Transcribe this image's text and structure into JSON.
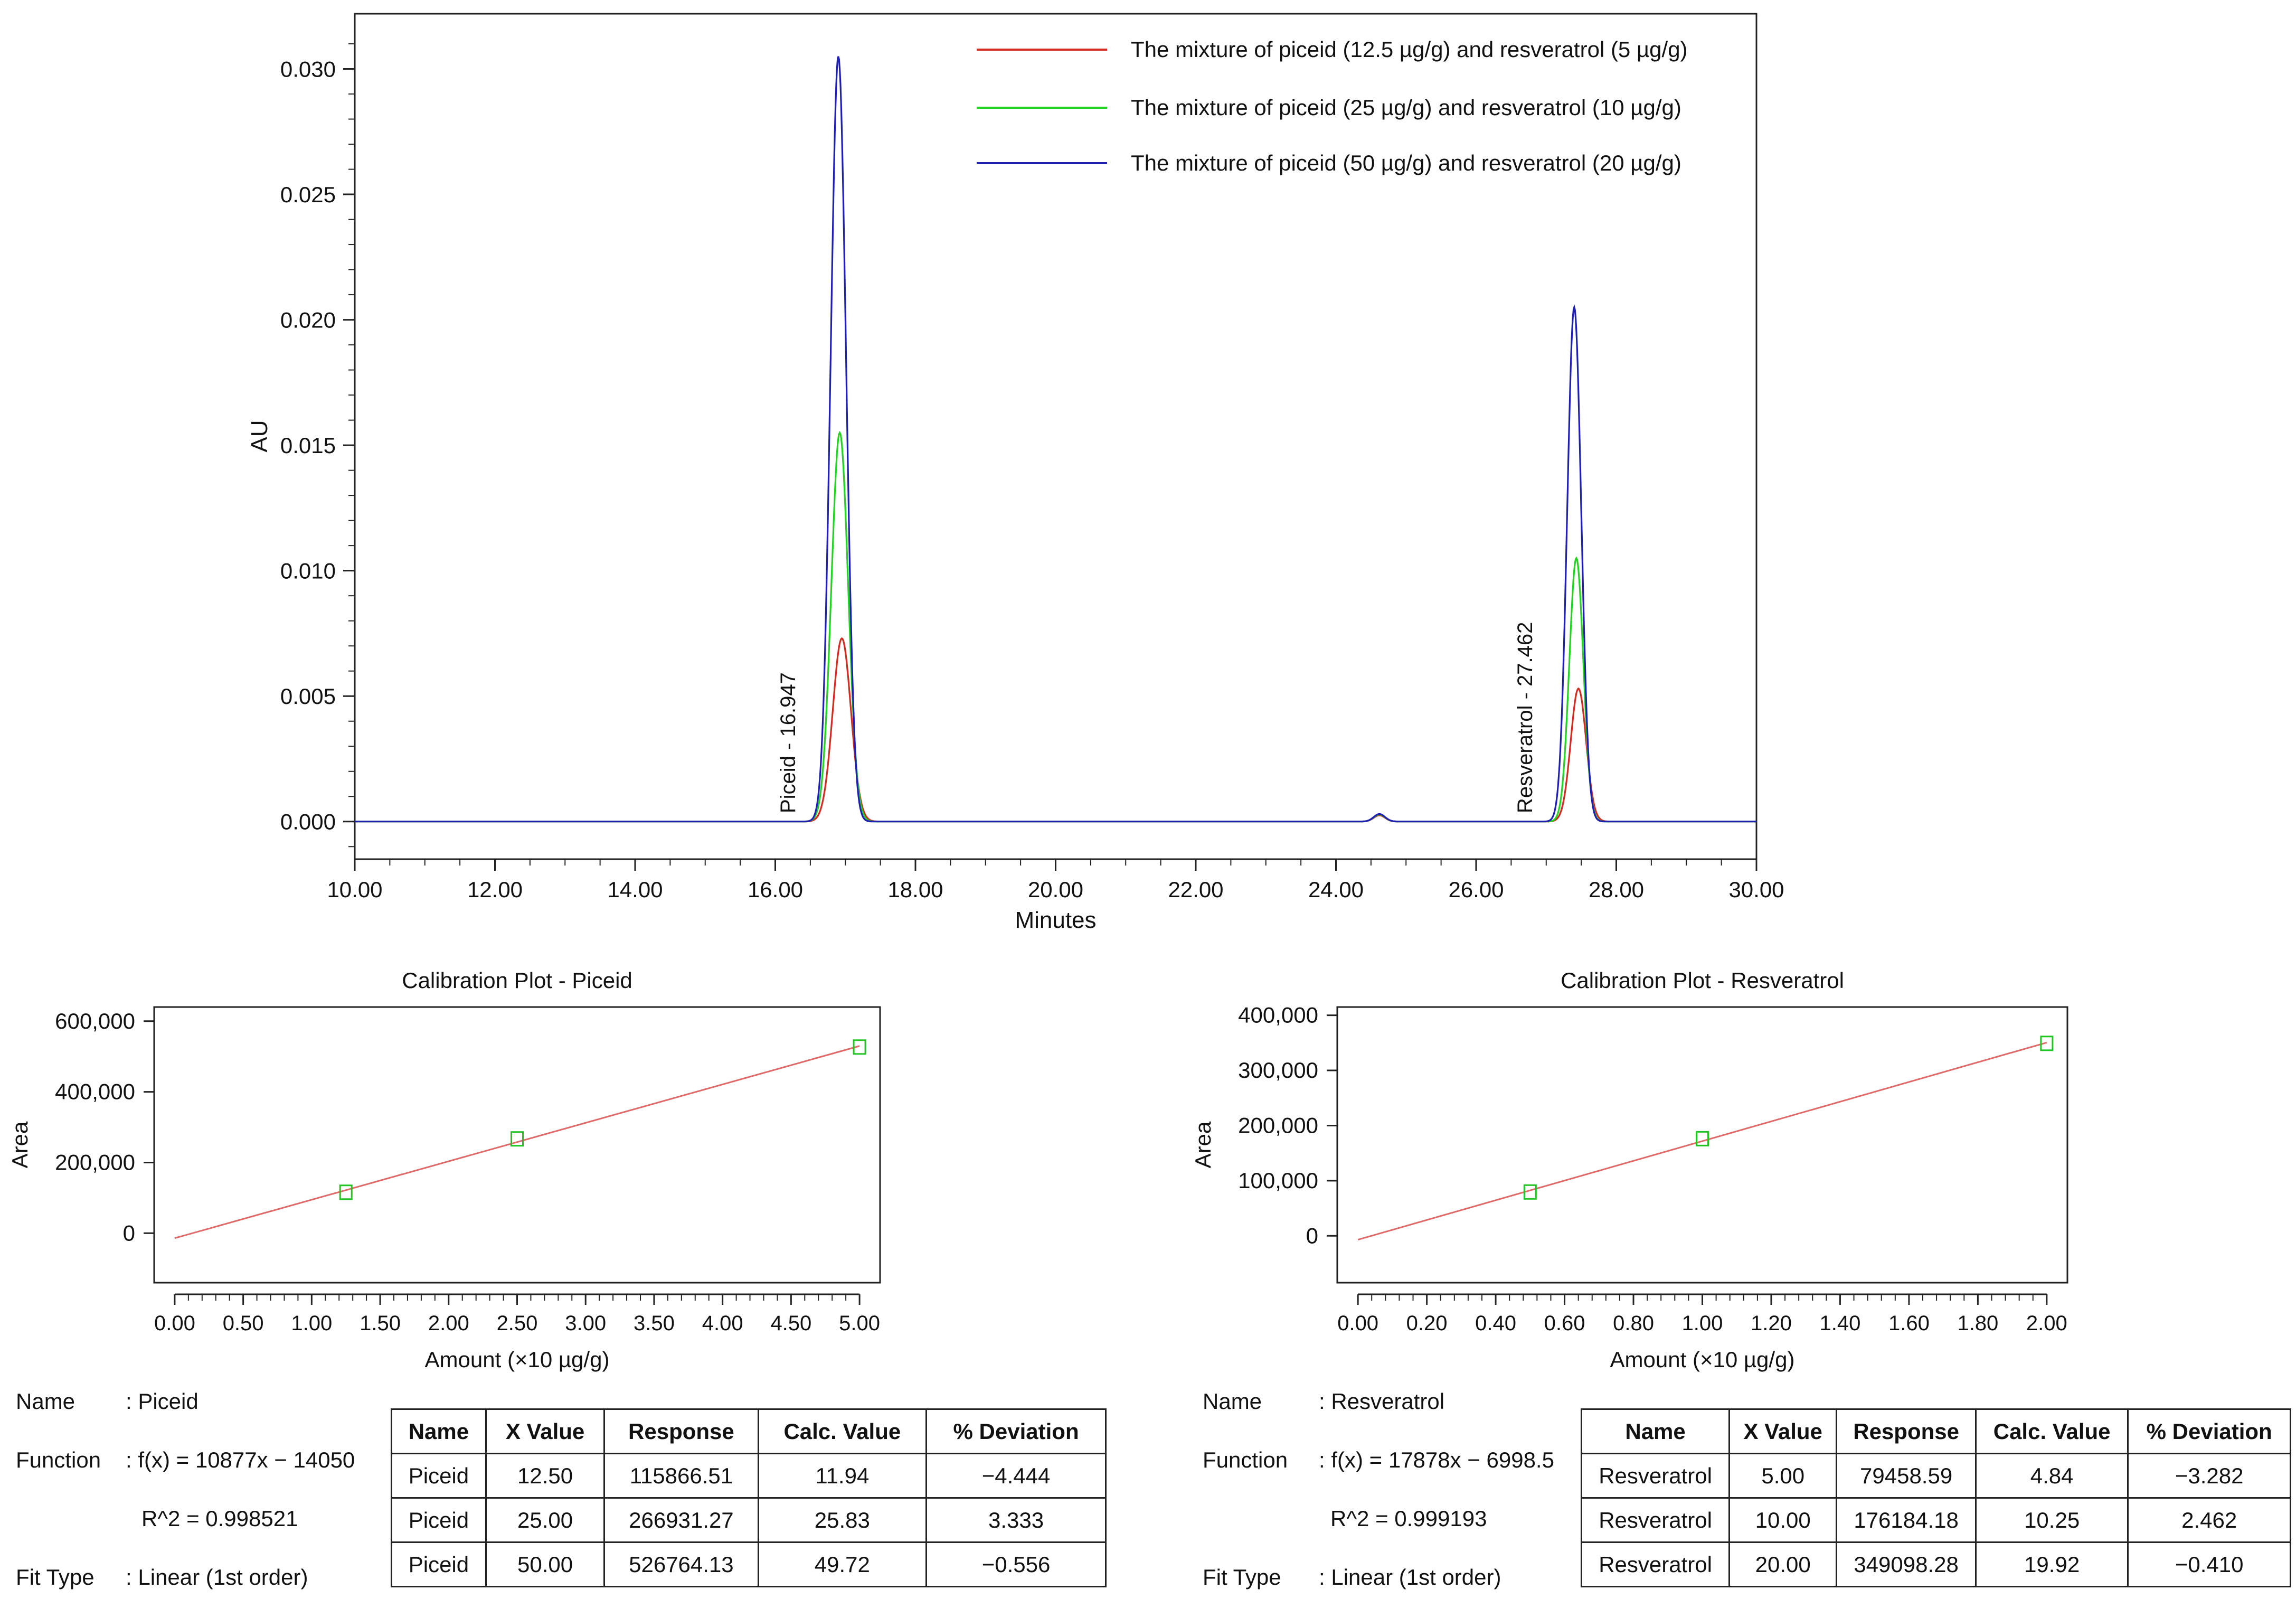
{
  "colors": {
    "red": "#d42b20",
    "green": "#22d322",
    "blue": "#1f1fb4",
    "fit_line": "#e06868",
    "marker": "#22c422",
    "axis": "#222222"
  },
  "chart_data": [
    {
      "type": "line",
      "title": "",
      "xlabel": "Minutes",
      "ylabel": "AU",
      "xlim": [
        10.0,
        30.0
      ],
      "ylim": [
        -0.0015,
        0.0322
      ],
      "x_ticks": [
        "10.00",
        "12.00",
        "14.00",
        "16.00",
        "18.00",
        "20.00",
        "22.00",
        "24.00",
        "26.00",
        "28.00",
        "30.00"
      ],
      "y_ticks": [
        "0.000",
        "0.005",
        "0.010",
        "0.015",
        "0.020",
        "0.025",
        "0.030"
      ],
      "grid": false,
      "legend": "top-right",
      "series": [
        {
          "name": "The mixture of piceid (12.5 µg/g) and resveratrol (5 µg/g)",
          "color": "#d42b20",
          "peaks": [
            {
              "rt": 16.95,
              "height": 0.0073,
              "width": 0.13
            },
            {
              "rt": 27.46,
              "height": 0.0053,
              "width": 0.11
            },
            {
              "rt": 24.62,
              "height": 0.00025,
              "width": 0.08
            }
          ]
        },
        {
          "name": "The mixture of piceid (25 µg/g) and resveratrol (10 µg/g)",
          "color": "#22d322",
          "peaks": [
            {
              "rt": 16.92,
              "height": 0.0155,
              "width": 0.12
            },
            {
              "rt": 27.43,
              "height": 0.0105,
              "width": 0.1
            },
            {
              "rt": 24.62,
              "height": 0.00028,
              "width": 0.08
            }
          ]
        },
        {
          "name": "The mixture of piceid (50 µg/g) and resveratrol (20 µg/g)",
          "color": "#1f1fb4",
          "peaks": [
            {
              "rt": 16.9,
              "height": 0.0305,
              "width": 0.11
            },
            {
              "rt": 27.4,
              "height": 0.0205,
              "width": 0.1
            },
            {
              "rt": 24.62,
              "height": 0.0003,
              "width": 0.08
            }
          ]
        }
      ],
      "annotations": [
        {
          "text": "Piceid - 16.947",
          "x": 16.947
        },
        {
          "text": "Resveratrol - 27.462",
          "x": 27.462
        }
      ]
    },
    {
      "type": "scatter",
      "title": "Calibration Plot - Piceid",
      "xlabel": "Amount (×10 µg/g)",
      "ylabel": "Area",
      "xlim": [
        -0.15,
        5.15
      ],
      "ylim": [
        -140000,
        640000
      ],
      "x_ticks": [
        "0.00",
        "0.50",
        "1.00",
        "1.50",
        "2.00",
        "2.50",
        "3.00",
        "3.50",
        "4.00",
        "4.50",
        "5.00"
      ],
      "y_ticks": [
        "0",
        "200,000",
        "400,000",
        "600,000"
      ],
      "points": [
        {
          "x": 1.25,
          "y": 115866.51
        },
        {
          "x": 2.5,
          "y": 266931.27
        },
        {
          "x": 5.0,
          "y": 526764.13
        }
      ],
      "fit": {
        "slope": 108770,
        "intercept": -14050,
        "x_range": [
          0.0,
          5.0
        ]
      }
    },
    {
      "type": "scatter",
      "title": "Calibration Plot - Resveratrol",
      "xlabel": "Amount (×10 µg/g)",
      "ylabel": "Area",
      "xlim": [
        -0.06,
        2.06
      ],
      "ylim": [
        -85000,
        415000
      ],
      "x_ticks": [
        "0.00",
        "0.20",
        "0.40",
        "0.60",
        "0.80",
        "1.00",
        "1.20",
        "1.40",
        "1.60",
        "1.80",
        "2.00"
      ],
      "y_ticks": [
        "0",
        "100,000",
        "200,000",
        "300,000",
        "400,000"
      ],
      "points": [
        {
          "x": 0.5,
          "y": 79458.59
        },
        {
          "x": 1.0,
          "y": 176184.18
        },
        {
          "x": 2.0,
          "y": 349098.28
        }
      ],
      "fit": {
        "slope": 178780,
        "intercept": -6998.5,
        "x_range": [
          0.0,
          2.0
        ]
      }
    }
  ],
  "piceid": {
    "name_label": "Name",
    "name_value": ": Piceid",
    "function_label": "Function",
    "function_value": ": f(x) = 10877x − 14050",
    "r2": "R^2 = 0.998521",
    "fit_label": "Fit Type",
    "fit_value": ": Linear (1st order)",
    "table": {
      "headers": [
        "Name",
        "X Value",
        "Response",
        "Calc. Value",
        "% Deviation"
      ],
      "rows": [
        [
          "Piceid",
          "12.50",
          "115866.51",
          "11.94",
          "−4.444"
        ],
        [
          "Piceid",
          "25.00",
          "266931.27",
          "25.83",
          "3.333"
        ],
        [
          "Piceid",
          "50.00",
          "526764.13",
          "49.72",
          "−0.556"
        ]
      ]
    }
  },
  "resveratrol": {
    "name_label": "Name",
    "name_value": ": Resveratrol",
    "function_label": "Function",
    "function_value": ": f(x) = 17878x − 6998.5",
    "r2": "R^2 = 0.999193",
    "fit_label": "Fit Type",
    "fit_value": ": Linear (1st order)",
    "table": {
      "headers": [
        "Name",
        "X Value",
        "Response",
        "Calc. Value",
        "% Deviation"
      ],
      "rows": [
        [
          "Resveratrol",
          "5.00",
          "79458.59",
          "4.84",
          "−3.282"
        ],
        [
          "Resveratrol",
          "10.00",
          "176184.18",
          "10.25",
          "2.462"
        ],
        [
          "Resveratrol",
          "20.00",
          "349098.28",
          "19.92",
          "−0.410"
        ]
      ]
    }
  }
}
